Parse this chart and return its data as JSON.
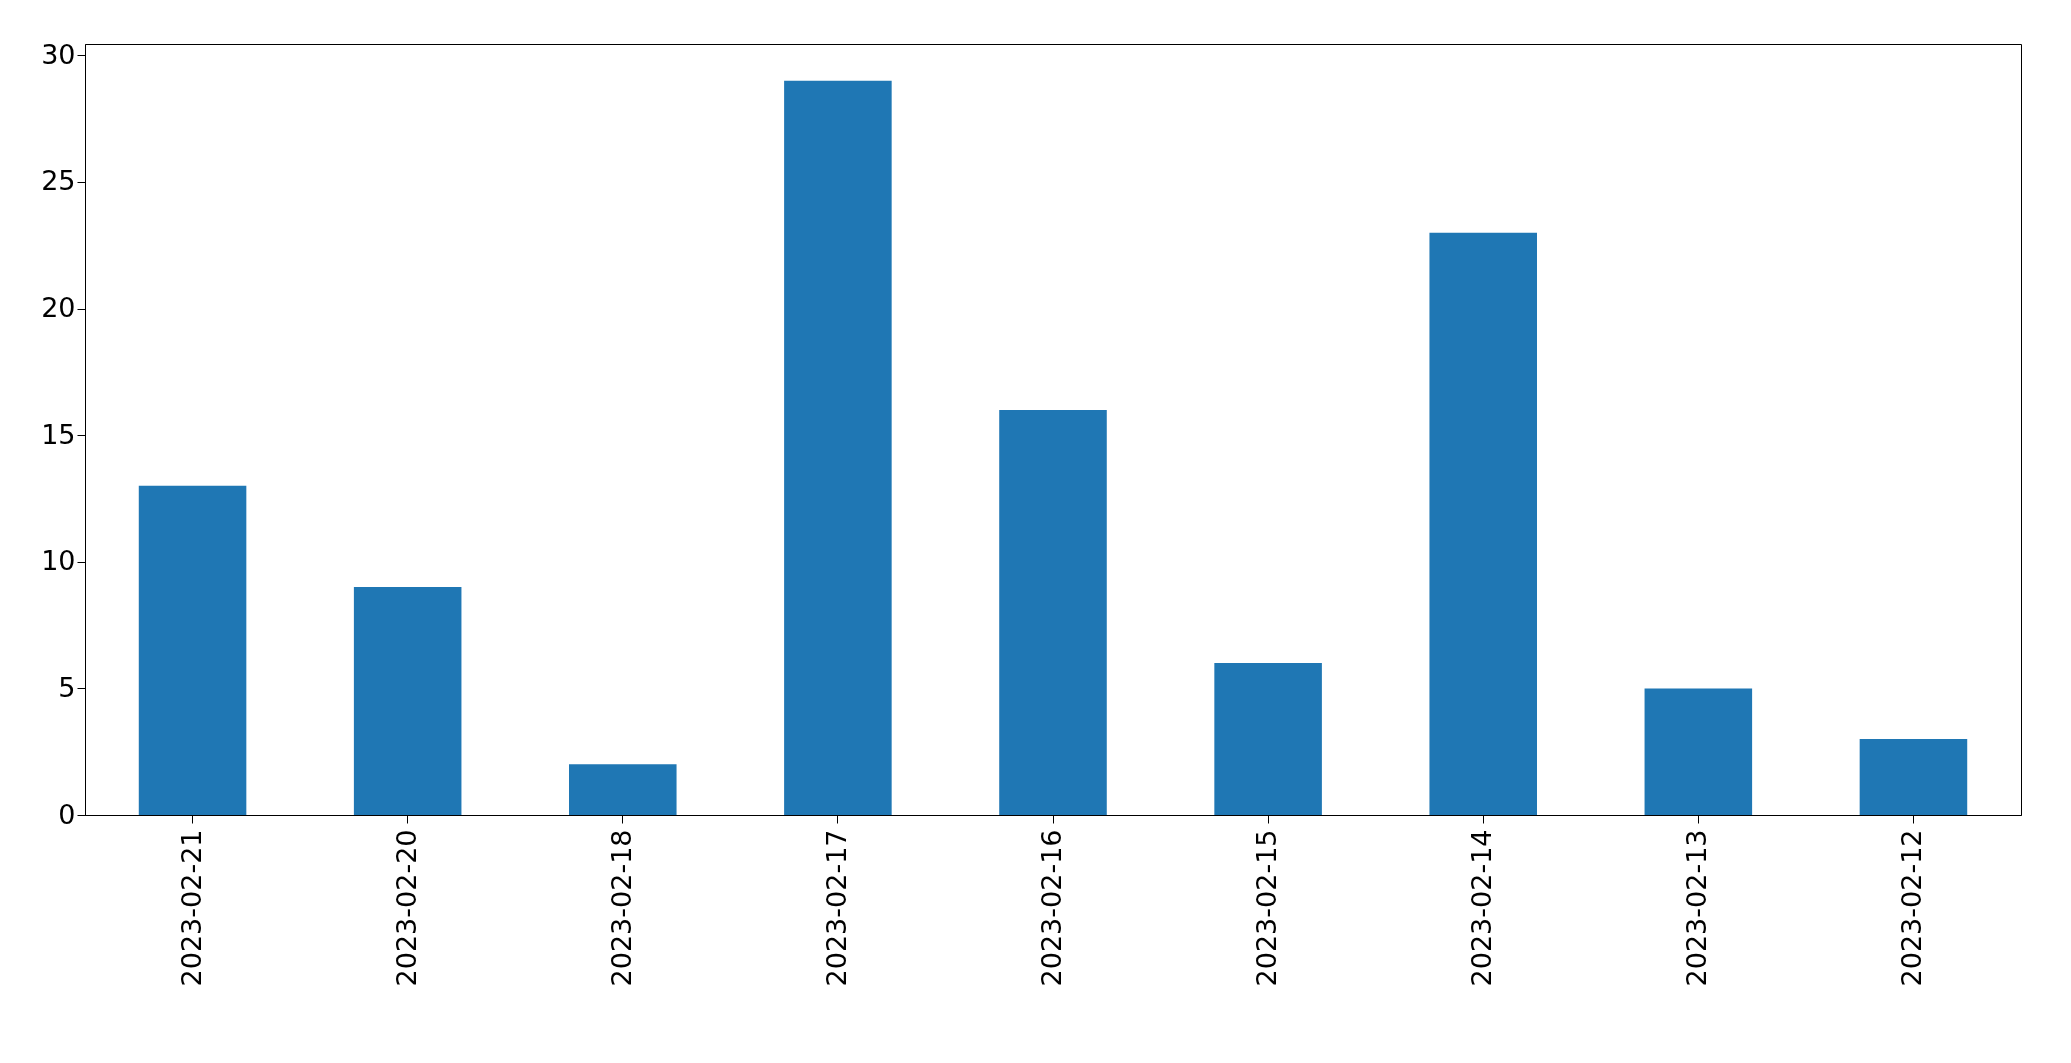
{
  "chart_data": {
    "type": "bar",
    "categories": [
      "2023-02-21",
      "2023-02-20",
      "2023-02-18",
      "2023-02-17",
      "2023-02-16",
      "2023-02-15",
      "2023-02-14",
      "2023-02-13",
      "2023-02-12"
    ],
    "values": [
      13,
      9,
      2,
      29,
      16,
      6,
      23,
      5,
      3
    ],
    "color": "#1f77b4",
    "ylim": [
      0,
      30.45
    ],
    "yticks": [
      0,
      5,
      10,
      15,
      20,
      25,
      30
    ],
    "grid": false
  }
}
